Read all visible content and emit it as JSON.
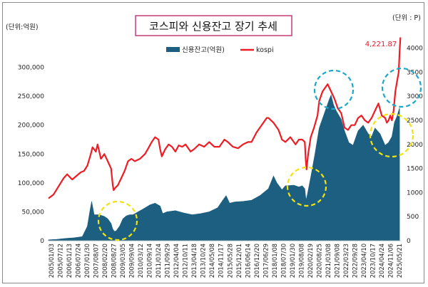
{
  "chart_data": {
    "type": "area+line",
    "title": "코스피와 신용잔고 장기 추세",
    "left_unit": "(단위:억원)",
    "right_unit": "(단위 : P)",
    "legend": [
      "신용잔고(억원)",
      "kospi"
    ],
    "legend_position": "top-center",
    "peak_label": "4,221.87",
    "grid": false,
    "colors": {
      "credit": "#1c5f80",
      "kospi": "#ee1c24",
      "circle_cyan": "#1ba8c9",
      "circle_yellow": "#f2e20e"
    },
    "y_left": {
      "range": [
        0,
        350000
      ],
      "ticks": [
        "0",
        "50,000",
        "100,000",
        "150,000",
        "200,000",
        "250,000",
        "300,000"
      ],
      "tick_values": [
        0,
        50000,
        100000,
        150000,
        200000,
        250000,
        300000
      ]
    },
    "y_right": {
      "range": [
        0,
        4200
      ],
      "ticks": [
        "0",
        "500",
        "1000",
        "1500",
        "2000",
        "2500",
        "3000",
        "3500",
        "4000"
      ],
      "tick_values": [
        0,
        500,
        1000,
        1500,
        2000,
        2500,
        3000,
        3500,
        4000
      ]
    },
    "x_ticks": [
      "2005/01/03",
      "2005/07/12",
      "2006/01/13",
      "2006/07/24",
      "2007/01/30",
      "2007/08/07",
      "2008/02/20",
      "2008/08/27",
      "2009/03/05",
      "2009/09/04",
      "2010/03/12",
      "2010/09/14",
      "2011/03/24",
      "2011/09/29",
      "2012/04/04",
      "2012/10/11",
      "2013/04/18",
      "2013/10/24",
      "2014/05/08",
      "2014/11/17",
      "2015/05/28",
      "2015/12/01",
      "2016/06/14",
      "2016/12/20",
      "2017/06/29",
      "2018/01/08",
      "2018/07/30",
      "2019/01/30",
      "2019/08/08",
      "2020/02/19",
      "2020/08/25",
      "2021/03/08",
      "2021/09/08",
      "2022/03/23",
      "2022/09/28",
      "2023/04/10",
      "2023/10/17",
      "2024/04/24",
      "2024/11/06",
      "2025/05/21"
    ],
    "credit_series": {
      "name": "신용잔고(억원)",
      "x": [
        2005.0,
        2005.5,
        2006.0,
        2006.5,
        2007.0,
        2007.3,
        2007.45,
        2007.55,
        2007.7,
        2008.0,
        2008.3,
        2008.5,
        2008.7,
        2008.8,
        2008.9,
        2009.0,
        2009.2,
        2009.4,
        2009.6,
        2009.8,
        2010.0,
        2010.3,
        2010.6,
        2011.0,
        2011.3,
        2011.6,
        2011.75,
        2012.0,
        2012.5,
        2013.0,
        2013.5,
        2014.0,
        2014.5,
        2015.0,
        2015.3,
        2015.5,
        2015.7,
        2016.0,
        2016.5,
        2017.0,
        2017.5,
        2018.0,
        2018.3,
        2018.5,
        2018.8,
        2019.0,
        2019.5,
        2019.8,
        2020.0,
        2020.15,
        2020.22,
        2020.3,
        2020.5,
        2020.75,
        2021.0,
        2021.3,
        2021.6,
        2021.7,
        2021.85,
        2022.0,
        2022.3,
        2022.5,
        2022.75,
        2023.0,
        2023.3,
        2023.6,
        2023.9,
        2024.1,
        2024.3,
        2024.6,
        2024.9,
        2025.1,
        2025.3,
        2025.45,
        2025.6,
        2025.75
      ],
      "y": [
        1500,
        2500,
        4000,
        5000,
        7000,
        25000,
        52000,
        68000,
        45000,
        45000,
        42000,
        38000,
        30000,
        20000,
        16000,
        17000,
        25000,
        38000,
        43000,
        45000,
        45000,
        50000,
        55000,
        62000,
        65000,
        60000,
        47000,
        50000,
        52000,
        48000,
        45000,
        47000,
        50000,
        57000,
        70000,
        78000,
        65000,
        67000,
        68000,
        70000,
        78000,
        90000,
        112000,
        100000,
        88000,
        95000,
        96000,
        93000,
        95000,
        90000,
        70000,
        80000,
        110000,
        150000,
        195000,
        220000,
        245000,
        252000,
        235000,
        225000,
        210000,
        190000,
        170000,
        165000,
        190000,
        200000,
        185000,
        180000,
        195000,
        185000,
        165000,
        170000,
        180000,
        205000,
        215000,
        230000
      ]
    },
    "kospi_series": {
      "name": "kospi",
      "x": [
        2005.0,
        2005.3,
        2005.6,
        2005.9,
        2006.1,
        2006.4,
        2006.6,
        2006.9,
        2007.1,
        2007.3,
        2007.5,
        2007.6,
        2007.8,
        2007.9,
        2008.1,
        2008.3,
        2008.5,
        2008.7,
        2008.8,
        2008.85,
        2008.95,
        2009.1,
        2009.3,
        2009.5,
        2009.7,
        2009.9,
        2010.1,
        2010.4,
        2010.7,
        2010.9,
        2011.1,
        2011.3,
        2011.5,
        2011.6,
        2011.7,
        2011.9,
        2012.1,
        2012.3,
        2012.5,
        2012.7,
        2012.9,
        2013.1,
        2013.4,
        2013.6,
        2013.9,
        2014.2,
        2014.5,
        2014.8,
        2015.1,
        2015.4,
        2015.6,
        2015.9,
        2016.2,
        2016.5,
        2016.8,
        2017.0,
        2017.3,
        2017.6,
        2017.9,
        2018.0,
        2018.3,
        2018.6,
        2018.8,
        2019.0,
        2019.3,
        2019.6,
        2019.8,
        2020.0,
        2020.15,
        2020.2,
        2020.25,
        2020.35,
        2020.5,
        2020.7,
        2020.9,
        2021.0,
        2021.2,
        2021.5,
        2021.7,
        2021.9,
        2022.1,
        2022.3,
        2022.5,
        2022.7,
        2022.9,
        2023.1,
        2023.3,
        2023.5,
        2023.7,
        2023.9,
        2024.1,
        2024.3,
        2024.5,
        2024.7,
        2024.9,
        2025.0,
        2025.1,
        2025.2,
        2025.3,
        2025.4,
        2025.5,
        2025.6,
        2025.7,
        2025.75,
        2025.8
      ],
      "y": [
        880,
        960,
        1130,
        1300,
        1380,
        1270,
        1330,
        1420,
        1450,
        1560,
        1800,
        1940,
        1850,
        2000,
        1700,
        1800,
        1650,
        1500,
        1150,
        1050,
        1100,
        1150,
        1300,
        1450,
        1650,
        1700,
        1650,
        1700,
        1800,
        1920,
        2050,
        2150,
        2100,
        1900,
        1750,
        1900,
        2000,
        1950,
        1850,
        1980,
        1950,
        2000,
        1850,
        1900,
        2000,
        1950,
        2050,
        1950,
        1950,
        2100,
        2050,
        1950,
        1920,
        2000,
        2050,
        2050,
        2250,
        2400,
        2550,
        2550,
        2450,
        2300,
        2100,
        2050,
        2150,
        2000,
        2100,
        2100,
        2050,
        1700,
        1480,
        1800,
        2150,
        2350,
        2600,
        2900,
        3100,
        3250,
        3100,
        2950,
        2750,
        2650,
        2350,
        2300,
        2400,
        2400,
        2550,
        2600,
        2500,
        2450,
        2550,
        2700,
        2850,
        2600,
        2550,
        2450,
        2500,
        2600,
        2500,
        2700,
        3100,
        3300,
        3500,
        3900,
        4222
      ]
    }
  }
}
